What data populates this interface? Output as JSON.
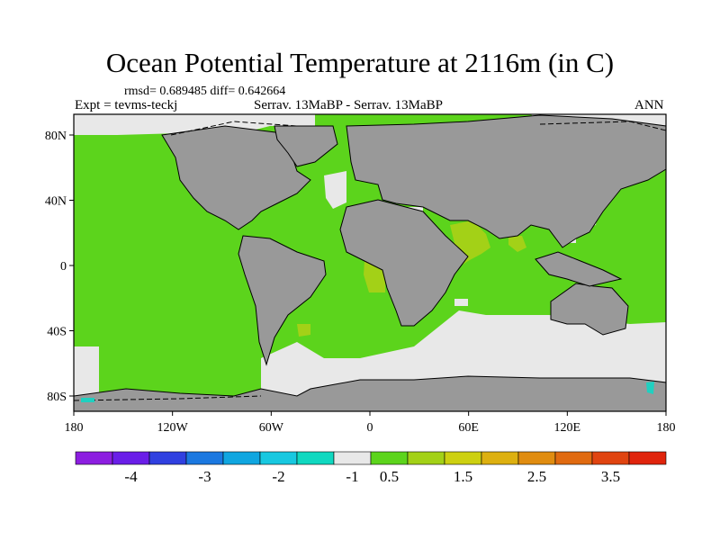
{
  "title": "Ocean Potential Temperature at 2116m (in C)",
  "stats": "rmsd= 0.689485 diff= 0.642664",
  "experiment": "Expt = tevms-teckj",
  "cases": "Serrav.  13MaBP - Serrav.  13MaBP",
  "season": "ANN",
  "lat_ticks": [
    {
      "value": 80,
      "label": "80N"
    },
    {
      "value": 40,
      "label": "40N"
    },
    {
      "value": 0,
      "label": "0"
    },
    {
      "value": -40,
      "label": "40S"
    },
    {
      "value": -80,
      "label": "80S"
    }
  ],
  "lon_ticks": [
    {
      "value": -180,
      "label": "180"
    },
    {
      "value": -120,
      "label": "120W"
    },
    {
      "value": -60,
      "label": "60W"
    },
    {
      "value": 0,
      "label": "0"
    },
    {
      "value": 60,
      "label": "60E"
    },
    {
      "value": 120,
      "label": "120E"
    },
    {
      "value": 180,
      "label": "180"
    }
  ],
  "colors": {
    "land": "#999999",
    "ocean_main": "#5cd41c",
    "ocean_warm": "#a3d117",
    "ocean_cold": "#e8e8e8",
    "cyan": "#20d0c0"
  },
  "colorbar": {
    "colors": [
      "#8c1ee0",
      "#6a1ee8",
      "#3040e0",
      "#1b78e0",
      "#10a6e0",
      "#18c8e0",
      "#10d8c0",
      "#e8e8e8",
      "#5cd41c",
      "#a3d117",
      "#cdd011",
      "#ddb010",
      "#e08c10",
      "#e06a10",
      "#e04410",
      "#e0240c"
    ],
    "labels": [
      {
        "after_box": 1,
        "text": "-4"
      },
      {
        "after_box": 3,
        "text": "-3"
      },
      {
        "after_box": 5,
        "text": "-2"
      },
      {
        "after_box": 7,
        "text": "-1"
      },
      {
        "after_box": 8,
        "text": "0.5"
      },
      {
        "after_box": 10,
        "text": "1.5"
      },
      {
        "after_box": 12,
        "text": "2.5"
      },
      {
        "after_box": 14,
        "text": "3.5"
      }
    ]
  }
}
